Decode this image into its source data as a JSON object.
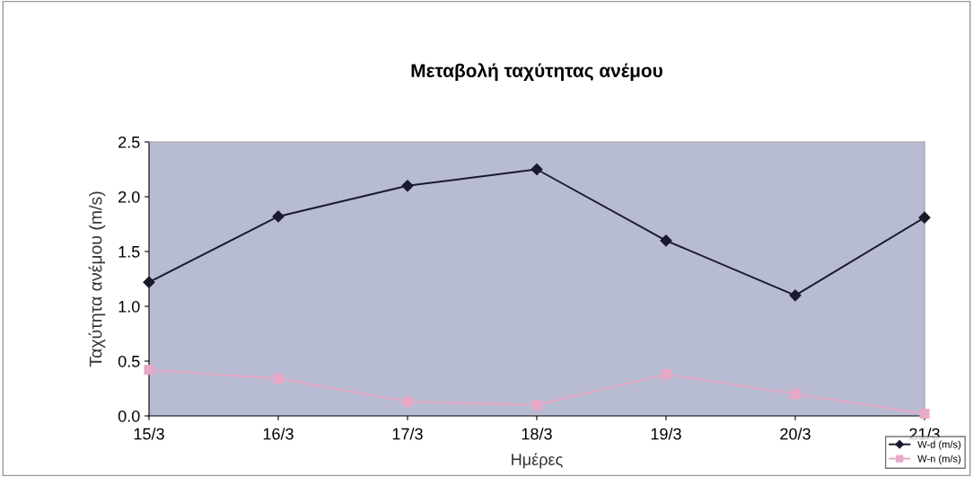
{
  "chart_data": {
    "type": "line",
    "title": "Μεταβολή ταχύτητας ανέμου",
    "xlabel": "Ημέρες",
    "ylabel": "Ταχύτητα ανέμου (m/s)",
    "categories": [
      "15/3",
      "16/3",
      "17/3",
      "18/3",
      "19/3",
      "20/3",
      "21/3"
    ],
    "series": [
      {
        "name": "W-d (m/s)",
        "color": "#1a1a2e",
        "marker": "diamond",
        "values": [
          1.22,
          1.82,
          2.1,
          2.25,
          1.6,
          1.1,
          1.81
        ]
      },
      {
        "name": "W-n (m/s)",
        "color": "#e8a8c8",
        "marker": "square",
        "values": [
          0.42,
          0.34,
          0.13,
          0.1,
          0.38,
          0.2,
          0.02
        ]
      }
    ],
    "ylim": [
      0,
      2.5
    ],
    "yticks": [
      {
        "value": 0,
        "label": "0.0"
      },
      {
        "value": 0.5,
        "label": "0.5"
      },
      {
        "value": 1,
        "label": "1.0"
      },
      {
        "value": 1.5,
        "label": "1.5"
      },
      {
        "value": 2,
        "label": "2.0"
      },
      {
        "value": 2.5,
        "label": "2.5"
      }
    ],
    "grid": false,
    "legend": "bottom right"
  }
}
